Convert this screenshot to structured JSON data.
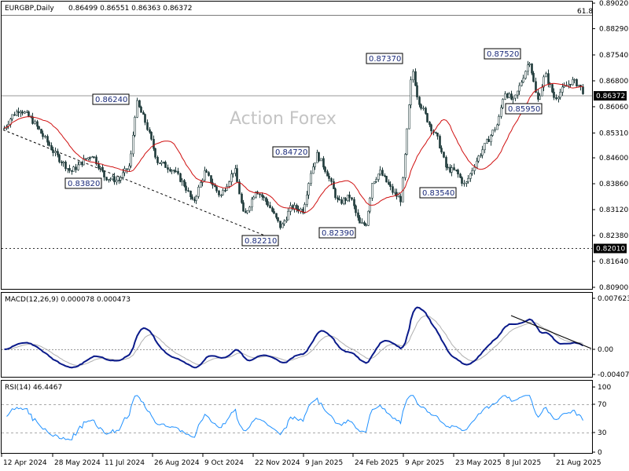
{
  "header": {
    "symbol": "EURGBP,Daily",
    "ohlc": "0.86499 0.86551 0.86363 0.86372",
    "fib_label": "61.8"
  },
  "watermark": "Action Forex",
  "main_axis": {
    "ticks": [
      "0.89020",
      "0.88290",
      "0.87540",
      "0.86800",
      "0.86060",
      "0.85310",
      "0.84600",
      "0.83860",
      "0.83120",
      "0.82380",
      "0.81640",
      "0.80900"
    ],
    "ticks_values": [
      0.8902,
      0.8829,
      0.8754,
      0.868,
      0.8606,
      0.8531,
      0.846,
      0.8386,
      0.8312,
      0.8238,
      0.8164,
      0.809
    ],
    "current_price": "0.86372",
    "support_level": "0.82010"
  },
  "price_labels": [
    {
      "text": "0.86240",
      "value": 0.8624
    },
    {
      "text": "0.83820",
      "value": 0.8382
    },
    {
      "text": "0.84720",
      "value": 0.8472
    },
    {
      "text": "0.82210",
      "value": 0.8221
    },
    {
      "text": "0.82390",
      "value": 0.8239
    },
    {
      "text": "0.87370",
      "value": 0.8737
    },
    {
      "text": "0.83540",
      "value": 0.8354
    },
    {
      "text": "0.87520",
      "value": 0.8752
    },
    {
      "text": "0.85950",
      "value": 0.8595
    }
  ],
  "macd": {
    "title": "MACD(12,26,9) 0.000078 0.000473",
    "ticks": [
      "0.007623",
      "0.00",
      "-0.004073"
    ],
    "current_label": "0.00"
  },
  "rsi": {
    "title": "RSI(14) 46.4467",
    "ticks": [
      "100",
      "70",
      "30",
      "0"
    ]
  },
  "x_axis": {
    "labels": [
      "12 Apr 2024",
      "28 May 2024",
      "11 Jul 2024",
      "26 Aug 2024",
      "9 Oct 2024",
      "22 Nov 2024",
      "9 Jan 2025",
      "24 Feb 2025",
      "9 Apr 2025",
      "23 May 2025",
      "8 Jul 2025",
      "21 Aug 2025"
    ]
  },
  "chart_data": {
    "type": "candlestick",
    "instrument": "EURGBP",
    "timeframe": "Daily",
    "ylim": [
      0.809,
      0.8902
    ],
    "ma_line_color": "#d01010",
    "price_path": {
      "x": [
        "12 Apr 2024",
        "28 May 2024",
        "11 Jul 2024",
        "26 Aug 2024",
        "9 Oct 2024",
        "22 Nov 2024",
        "9 Jan 2025",
        "24 Feb 2025",
        "9 Apr 2025",
        "23 May 2025",
        "8 Jul 2025",
        "21 Aug 2025"
      ],
      "close": [
        0.856,
        0.8452,
        0.8505,
        0.842,
        0.838,
        0.83,
        0.841,
        0.829,
        0.8615,
        0.842,
        0.862,
        0.866
      ]
    },
    "annotations": [
      {
        "type": "high",
        "value": 0.8624,
        "date": "11 Jul 2024"
      },
      {
        "type": "low",
        "value": 0.8382,
        "date": "28 May 2024"
      },
      {
        "type": "high",
        "value": 0.8472,
        "date": "9 Jan 2025"
      },
      {
        "type": "low",
        "value": 0.8221,
        "date": "22 Nov 2024"
      },
      {
        "type": "low",
        "value": 0.8239,
        "date": "24 Feb 2025"
      },
      {
        "type": "high",
        "value": 0.8737,
        "date": "9 Apr 2025"
      },
      {
        "type": "low",
        "value": 0.8354,
        "date": "23 May 2025"
      },
      {
        "type": "high",
        "value": 0.8752,
        "date": "8 Jul 2025"
      },
      {
        "type": "low",
        "value": 0.8595,
        "date": "8 Jul 2025"
      }
    ],
    "horizontal_lines": [
      {
        "value": 0.86372,
        "style": "solid",
        "label": "0.86372"
      },
      {
        "value": 0.8201,
        "style": "dotted",
        "label": "0.82010"
      }
    ],
    "macd": {
      "range": [
        -0.004073,
        0.007623
      ],
      "value": 7.8e-05,
      "signal": 0.000473
    },
    "rsi": {
      "range": [
        0,
        100
      ],
      "levels": [
        70,
        30
      ],
      "value": 46.4467
    }
  }
}
